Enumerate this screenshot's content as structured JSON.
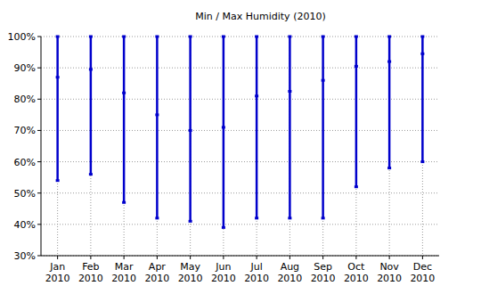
{
  "chart_data": {
    "type": "range",
    "title": "Min / Max Humidity (2010)",
    "categories": [
      "Jan 2010",
      "Feb 2010",
      "Mar 2010",
      "Apr 2010",
      "May 2010",
      "Jun 2010",
      "Jul 2010",
      "Aug 2010",
      "Sep 2010",
      "Oct 2010",
      "Nov 2010",
      "Dec 2010"
    ],
    "low": [
      54,
      56,
      47,
      42,
      41,
      39,
      42,
      42,
      42,
      52,
      58,
      60
    ],
    "values": [
      87,
      89.5,
      82,
      75,
      70,
      71,
      81,
      82.5,
      86,
      90.5,
      92,
      94.5
    ],
    "high": [
      100,
      100,
      100,
      100,
      100,
      100,
      100,
      100,
      100,
      100,
      100,
      100
    ],
    "color": "#0000cc",
    "ylim": [
      30,
      100
    ],
    "yticks": [
      {
        "value": 30,
        "label": "30%"
      },
      {
        "value": 40,
        "label": "40%"
      },
      {
        "value": 50,
        "label": "50%"
      },
      {
        "value": 60,
        "label": "60%"
      },
      {
        "value": 70,
        "label": "70%"
      },
      {
        "value": 80,
        "label": "80%"
      },
      {
        "value": 90,
        "label": "90%"
      },
      {
        "value": 100,
        "label": "100%"
      }
    ],
    "grid": true
  }
}
